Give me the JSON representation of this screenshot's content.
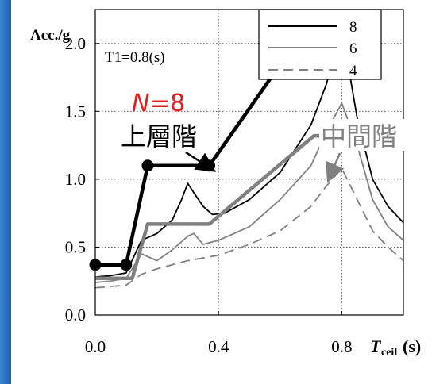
{
  "chart_data": {
    "type": "line",
    "ylabel": "Acc./g",
    "xlabel_main": "T",
    "xlabel_sub": "ceil",
    "xlabel_unit": "(s)",
    "period_note": "T1=0.8(s)",
    "xlim": [
      0.0,
      1.0
    ],
    "ylim": [
      0.0,
      2.25
    ],
    "x_ticks": [
      "0.0",
      "0.4",
      "0.8"
    ],
    "x_tick_values": [
      0.0,
      0.4,
      0.8
    ],
    "y_ticks": [
      "0.0",
      "0.5",
      "1.0",
      "1.5",
      "2.0",
      "2.5"
    ],
    "y_tick_values": [
      0.0,
      0.5,
      1.0,
      1.5,
      2.0,
      2.5
    ],
    "grid": true,
    "legend_position": "top-right",
    "legend": [
      {
        "label": "8",
        "color": "#000000",
        "dash": "solid"
      },
      {
        "label": "6",
        "color": "#808080",
        "dash": "solid"
      },
      {
        "label": "4",
        "color": "#808080",
        "dash": "dashed"
      }
    ],
    "series": [
      {
        "name": "8",
        "color": "#000000",
        "dash": "solid",
        "x": [
          0.0,
          0.05,
          0.1,
          0.15,
          0.2,
          0.25,
          0.28,
          0.3,
          0.32,
          0.35,
          0.38,
          0.42,
          0.5,
          0.6,
          0.7,
          0.75,
          0.78,
          0.8,
          0.82,
          0.85,
          0.9,
          0.95,
          1.0
        ],
        "y": [
          0.28,
          0.29,
          0.31,
          0.55,
          0.6,
          0.7,
          0.85,
          0.97,
          0.9,
          0.8,
          0.74,
          0.75,
          0.85,
          1.05,
          1.4,
          1.7,
          1.95,
          2.08,
          1.85,
          1.45,
          1.0,
          0.8,
          0.68
        ]
      },
      {
        "name": "6",
        "color": "#808080",
        "dash": "solid",
        "x": [
          0.0,
          0.05,
          0.1,
          0.15,
          0.2,
          0.25,
          0.3,
          0.32,
          0.35,
          0.4,
          0.5,
          0.6,
          0.7,
          0.75,
          0.8,
          0.85,
          0.9,
          0.95,
          1.0
        ],
        "y": [
          0.24,
          0.25,
          0.27,
          0.45,
          0.4,
          0.48,
          0.58,
          0.6,
          0.52,
          0.55,
          0.65,
          0.85,
          1.1,
          1.35,
          1.56,
          1.25,
          0.85,
          0.65,
          0.55
        ]
      },
      {
        "name": "4",
        "color": "#808080",
        "dash": "dashed",
        "x": [
          0.0,
          0.1,
          0.15,
          0.2,
          0.3,
          0.4,
          0.5,
          0.6,
          0.7,
          0.75,
          0.8,
          0.85,
          0.9,
          0.95,
          1.0
        ],
        "y": [
          0.2,
          0.22,
          0.3,
          0.34,
          0.4,
          0.44,
          0.52,
          0.62,
          0.8,
          0.95,
          1.08,
          0.85,
          0.62,
          0.5,
          0.4
        ]
      }
    ],
    "design_lines": [
      {
        "label": "上層階",
        "color": "#000000",
        "markers": true,
        "x": [
          0.0,
          0.1,
          0.17,
          0.37,
          0.71,
          0.9
        ],
        "y": [
          0.37,
          0.37,
          1.1,
          1.1,
          2.2,
          2.2
        ]
      },
      {
        "label": "中間階",
        "color": "#808080",
        "markers": false,
        "x": [
          0.0,
          0.12,
          0.17,
          0.37,
          0.71,
          0.9
        ],
        "y": [
          0.27,
          0.27,
          0.67,
          0.67,
          1.32,
          1.32
        ]
      }
    ],
    "annotations": {
      "story_count_symbol": "N",
      "story_count": "=8",
      "upper_label": "上層階",
      "middle_label": "中間階"
    }
  }
}
